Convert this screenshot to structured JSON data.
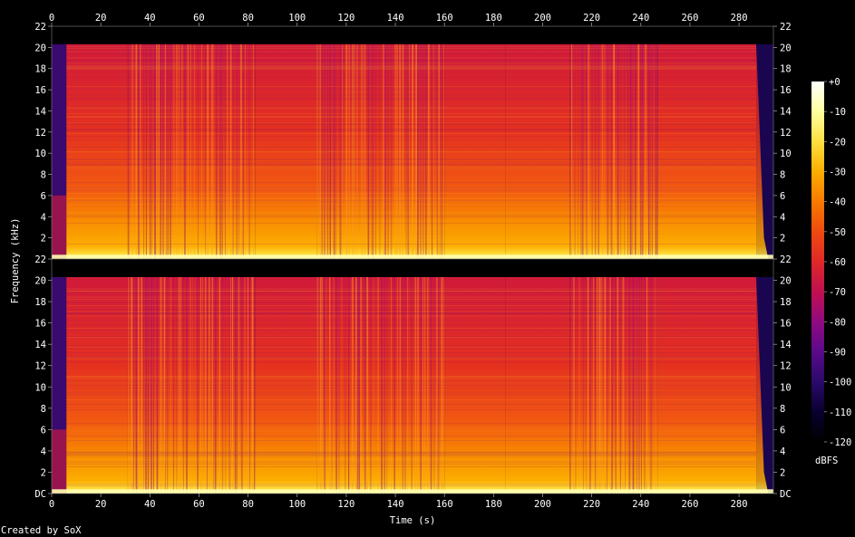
{
  "chart_data": {
    "type": "heatmap",
    "title": "",
    "xlabel": "Time (s)",
    "ylabel": "Frequency (kHz)",
    "xlim": [
      0,
      294
    ],
    "x_ticks": [
      0,
      20,
      40,
      60,
      80,
      100,
      120,
      140,
      160,
      180,
      200,
      220,
      240,
      260,
      280
    ],
    "channels": [
      {
        "ylim": [
          0,
          22
        ],
        "y_ticks": [
          {
            "v": 0,
            "l": "22"
          },
          {
            "v": 2,
            "l": "2"
          },
          {
            "v": 4,
            "l": "4"
          },
          {
            "v": 6,
            "l": "6"
          },
          {
            "v": 8,
            "l": "8"
          },
          {
            "v": 10,
            "l": "10"
          },
          {
            "v": 12,
            "l": "12"
          },
          {
            "v": 14,
            "l": "14"
          },
          {
            "v": 16,
            "l": "16"
          },
          {
            "v": 18,
            "l": "18"
          },
          {
            "v": 20,
            "l": "20"
          },
          {
            "v": 22,
            "l": "22"
          }
        ]
      },
      {
        "ylim": [
          0,
          22
        ],
        "y_ticks": [
          {
            "v": 0,
            "l": "DC"
          },
          {
            "v": 2,
            "l": "2"
          },
          {
            "v": 4,
            "l": "4"
          },
          {
            "v": 6,
            "l": "6"
          },
          {
            "v": 8,
            "l": "8"
          },
          {
            "v": 10,
            "l": "10"
          },
          {
            "v": 12,
            "l": "12"
          },
          {
            "v": 14,
            "l": "14"
          },
          {
            "v": 16,
            "l": "16"
          },
          {
            "v": 18,
            "l": "18"
          },
          {
            "v": 20,
            "l": "20"
          }
        ]
      }
    ],
    "cutoff_khz": 20.3,
    "colorbar": {
      "unit": "dBFS",
      "range": [
        -120,
        0
      ],
      "ticks": [
        {
          "v": 0,
          "l": "+0"
        },
        {
          "v": -10,
          "l": "-10"
        },
        {
          "v": -20,
          "l": "-20"
        },
        {
          "v": -30,
          "l": "-30"
        },
        {
          "v": -40,
          "l": "-40"
        },
        {
          "v": -50,
          "l": "-50"
        },
        {
          "v": -60,
          "l": "-60"
        },
        {
          "v": -70,
          "l": "-70"
        },
        {
          "v": -80,
          "l": "-80"
        },
        {
          "v": -90,
          "l": "-90"
        },
        {
          "v": -100,
          "l": "-100"
        },
        {
          "v": -110,
          "l": "-110"
        },
        {
          "v": -120,
          "l": "-120"
        }
      ],
      "colors": [
        "#000000",
        "#0a0030",
        "#2a0a6a",
        "#5a0a8a",
        "#900a80",
        "#c01050",
        "#e02828",
        "#f04a10",
        "#f87a00",
        "#fcae00",
        "#fee040",
        "#ffffa0",
        "#ffffff"
      ]
    },
    "sections": [
      {
        "x0": 0,
        "x1": 6,
        "kind": "quiet"
      },
      {
        "x0": 6,
        "x1": 31,
        "kind": "dense"
      },
      {
        "x0": 31,
        "x1": 83,
        "kind": "busy"
      },
      {
        "x0": 83,
        "x1": 108,
        "kind": "dense"
      },
      {
        "x0": 108,
        "x1": 160,
        "kind": "busy"
      },
      {
        "x0": 160,
        "x1": 185,
        "kind": "dense"
      },
      {
        "x0": 185,
        "x1": 211,
        "kind": "dense"
      },
      {
        "x0": 211,
        "x1": 247,
        "kind": "busy"
      },
      {
        "x0": 247,
        "x1": 287,
        "kind": "dense"
      },
      {
        "x0": 287,
        "x1": 294,
        "kind": "fade"
      }
    ],
    "credit": "Created by SoX"
  }
}
